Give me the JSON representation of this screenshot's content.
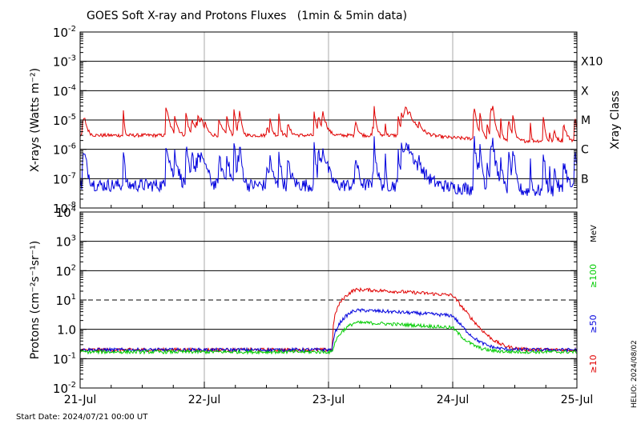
{
  "chart_data": [
    {
      "type": "line",
      "title": "GOES Soft X-ray and Protons Fluxes   (1min & 5min data)",
      "ylabel": "X-rays (Watts m⁻²)",
      "yscale": "log",
      "ylim": [
        1e-08,
        0.01
      ],
      "y_ticks": [
        {
          "base": "10",
          "exp": "-8"
        },
        {
          "base": "10",
          "exp": "-7"
        },
        {
          "base": "10",
          "exp": "-6"
        },
        {
          "base": "10",
          "exp": "-5"
        },
        {
          "base": "10",
          "exp": "-4"
        },
        {
          "base": "10",
          "exp": "-3"
        },
        {
          "base": "10",
          "exp": "-2"
        }
      ],
      "right_axis_label": "Xray Class",
      "class_labels": [
        {
          "label": "B",
          "flux": 1e-07
        },
        {
          "label": "C",
          "flux": 1e-06
        },
        {
          "label": "M",
          "flux": 1e-05
        },
        {
          "label": "X",
          "flux": 0.0001
        },
        {
          "label": "X10",
          "flux": 0.001
        }
      ],
      "grid": true,
      "series": [
        {
          "color": "#e00000",
          "baseline": 3e-06
        },
        {
          "color": "#0000dd",
          "baseline": 6e-08
        }
      ]
    },
    {
      "type": "line",
      "ylabel": "Protons (cm⁻²s⁻¹sr⁻¹)",
      "yscale": "log",
      "ylim": [
        0.01,
        10000
      ],
      "y_ticks": [
        {
          "base": "10",
          "exp": "-2"
        },
        {
          "base": "10",
          "exp": "-1"
        },
        {
          "base": "1.0",
          "exp": ""
        },
        {
          "base": "10",
          "exp": "1"
        },
        {
          "base": "10",
          "exp": "2"
        },
        {
          "base": "10",
          "exp": "3"
        },
        {
          "base": "10",
          "exp": "4"
        }
      ],
      "threshold": 10,
      "units_label": "MeV",
      "grid": true,
      "series": [
        {
          "name": "≥10",
          "color": "#e00000",
          "baseline": 0.2,
          "peak": 22
        },
        {
          "name": "≥50",
          "color": "#0000dd",
          "baseline": 0.2,
          "peak": 4.2
        },
        {
          "name": "≥100",
          "color": "#00cc00",
          "baseline": 0.17,
          "peak": 1.5
        }
      ]
    }
  ],
  "x_ticks": [
    "21-Jul",
    "22-Jul",
    "23-Jul",
    "24-Jul",
    "25-Jul"
  ],
  "start_date": "Start Date: 2024/07/21 00:00 UT",
  "credit": "HELIO: 2024/08/02"
}
